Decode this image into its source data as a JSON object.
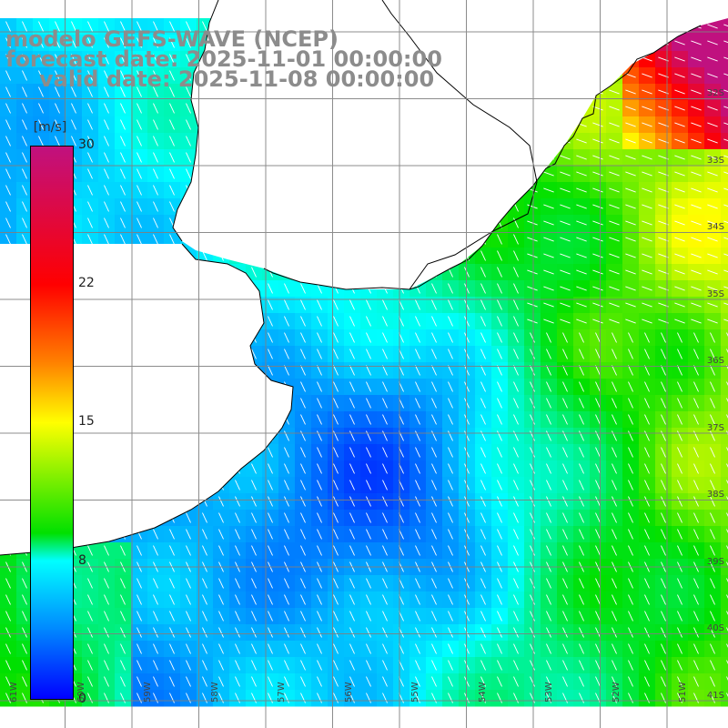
{
  "header": {
    "line1": "modelo GEFS-WAVE (NCEP)",
    "line2": "forecast date: 2025-11-01 00:00:00",
    "line3": "valid date: 2025-11-08 00:00:00"
  },
  "colorbar": {
    "unit": "[m/s]",
    "ticks": [
      "30",
      "22",
      "15",
      "8",
      "0"
    ],
    "tick_values": [
      30,
      22,
      15,
      8,
      0
    ],
    "colors": [
      "#0000ff",
      "#008cff",
      "#00ffff",
      "#00e000",
      "#ffff00",
      "#ff8000",
      "#ff0000",
      "#c0117f"
    ]
  },
  "lat_labels": [
    "32S",
    "33S",
    "34S",
    "35S",
    "36S",
    "37S",
    "38S",
    "39S",
    "40S",
    "41S"
  ],
  "lon_labels": [
    "61W",
    "60W",
    "59W",
    "58W",
    "57W",
    "56W",
    "55W",
    "54W",
    "53W",
    "52W",
    "51W"
  ],
  "field": {
    "description": "Wind speed at 10 m (color) with direction arrows",
    "land_color": "#ffffff",
    "coast_color": "#000000",
    "grid_color": "#808080"
  }
}
